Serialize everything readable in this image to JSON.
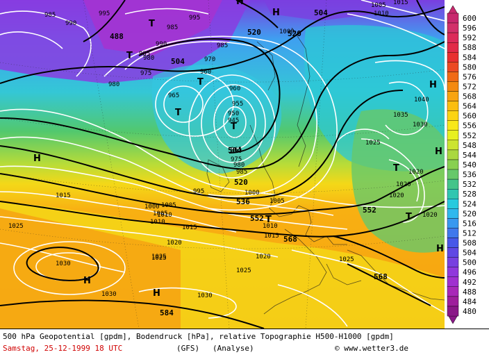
{
  "caption": {
    "line1": "500 hPa Geopotential [gpdm], Bodendruck [hPa], relative Topographie H500-H1000 [gpdm]",
    "date": "Samstag, 25-12-1999  18 UTC",
    "model": "(GFS)",
    "analysis": "(Analyse)",
    "credit": "© www.wetter3.de"
  },
  "scale": {
    "labels": [
      "600",
      "596",
      "592",
      "588",
      "584",
      "580",
      "576",
      "572",
      "568",
      "564",
      "560",
      "556",
      "552",
      "548",
      "544",
      "540",
      "536",
      "532",
      "528",
      "524",
      "520",
      "516",
      "512",
      "508",
      "504",
      "500",
      "496",
      "492",
      "488",
      "484",
      "480"
    ],
    "colors": [
      "#c8286e",
      "#d2306a",
      "#dc2b5a",
      "#e22a48",
      "#e83030",
      "#ec4a22",
      "#f06a14",
      "#f48a10",
      "#f8a410",
      "#fbbe10",
      "#fcd412",
      "#f8e81a",
      "#e8f020",
      "#cce430",
      "#aad840",
      "#88d050",
      "#66c86a",
      "#44c48a",
      "#30c6b0",
      "#28cade",
      "#30b8ee",
      "#3898f0",
      "#4078ec",
      "#4858e8",
      "#6048e4",
      "#7840e0",
      "#9038dc",
      "#a030d0",
      "#a828b8",
      "#9e1f9c",
      "#8a1888"
    ]
  },
  "map": {
    "geopotential_labels": [
      {
        "text": "488"
      },
      {
        "text": "504"
      },
      {
        "text": "504"
      },
      {
        "text": "520"
      },
      {
        "text": "520"
      },
      {
        "text": "504"
      },
      {
        "text": "520"
      },
      {
        "text": "536"
      },
      {
        "text": "552"
      },
      {
        "text": "552"
      },
      {
        "text": "568"
      },
      {
        "text": "568"
      },
      {
        "text": "584"
      }
    ],
    "pressure_labels": [
      {
        "text": "985"
      },
      {
        "text": "990"
      },
      {
        "text": "995"
      },
      {
        "text": "985"
      },
      {
        "text": "995"
      },
      {
        "text": "985"
      },
      {
        "text": "990"
      },
      {
        "text": "975"
      },
      {
        "text": "985"
      },
      {
        "text": "980"
      },
      {
        "text": "965"
      },
      {
        "text": "960"
      },
      {
        "text": "970"
      },
      {
        "text": "980"
      },
      {
        "text": "960"
      },
      {
        "text": "955"
      },
      {
        "text": "950"
      },
      {
        "text": "945"
      },
      {
        "text": "965"
      },
      {
        "text": "975"
      },
      {
        "text": "980"
      },
      {
        "text": "985"
      },
      {
        "text": "995"
      },
      {
        "text": "1000"
      },
      {
        "text": "1005"
      },
      {
        "text": "1010"
      },
      {
        "text": "1015"
      },
      {
        "text": "1000"
      },
      {
        "text": "1005"
      },
      {
        "text": "1010"
      },
      {
        "text": "1015"
      },
      {
        "text": "1020"
      },
      {
        "text": "1025"
      },
      {
        "text": "1010"
      },
      {
        "text": "1015"
      },
      {
        "text": "1020"
      },
      {
        "text": "1025"
      },
      {
        "text": "1030"
      },
      {
        "text": "1030"
      },
      {
        "text": "1030"
      },
      {
        "text": "1025"
      },
      {
        "text": "1025"
      },
      {
        "text": "1020"
      },
      {
        "text": "1020"
      },
      {
        "text": "1020"
      },
      {
        "text": "1035"
      },
      {
        "text": "1040"
      },
      {
        "text": "1030"
      },
      {
        "text": "1025"
      },
      {
        "text": "1020"
      },
      {
        "text": "1005"
      },
      {
        "text": "1010"
      },
      {
        "text": "1015"
      },
      {
        "text": "1005"
      },
      {
        "text": "1025"
      },
      {
        "text": "1000"
      }
    ],
    "centers": [
      {
        "text": "H"
      },
      {
        "text": "H"
      },
      {
        "text": "H"
      },
      {
        "text": "H"
      },
      {
        "text": "H"
      },
      {
        "text": "H"
      },
      {
        "text": "H"
      },
      {
        "text": "H"
      },
      {
        "text": "T"
      },
      {
        "text": "T"
      },
      {
        "text": "T"
      },
      {
        "text": "T"
      },
      {
        "text": "T"
      },
      {
        "text": "T"
      },
      {
        "text": "T"
      },
      {
        "text": "T"
      }
    ]
  }
}
